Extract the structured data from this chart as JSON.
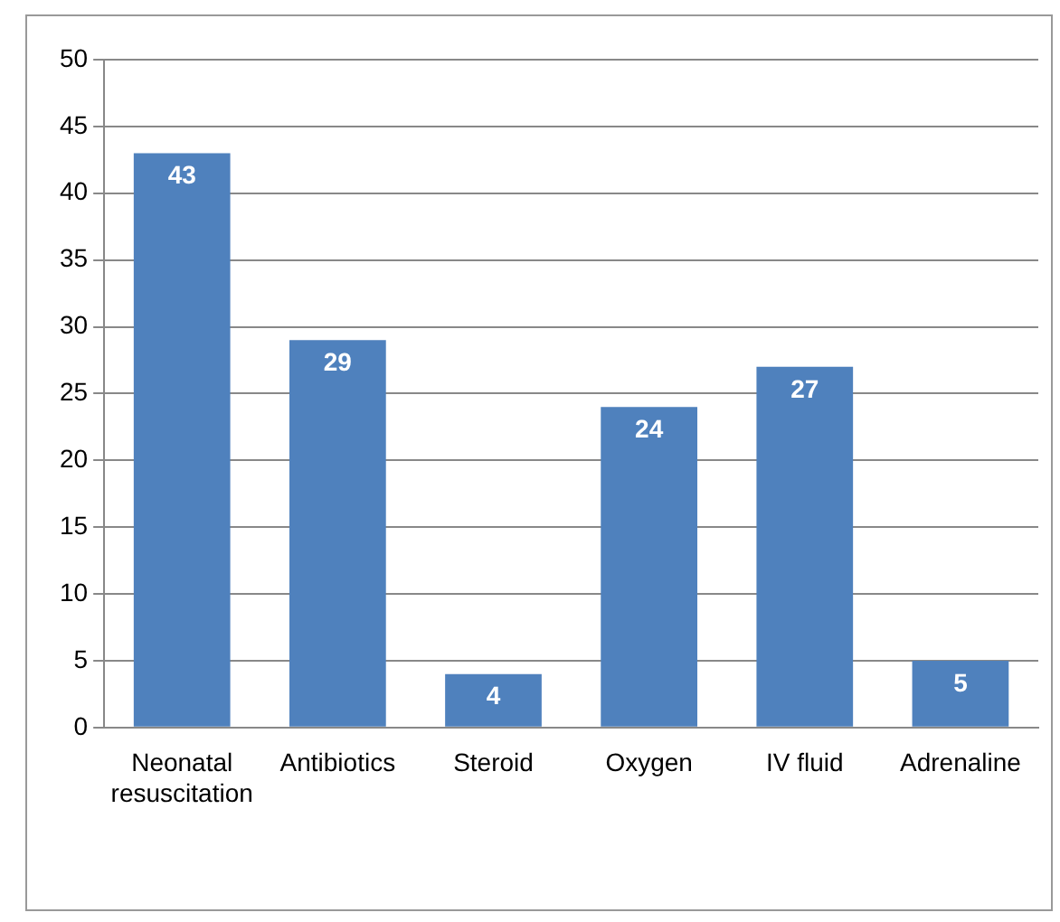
{
  "chart_data": {
    "type": "bar",
    "categories": [
      "Neonatal resuscitation",
      "Antibiotics",
      "Steroid",
      "Oxygen",
      "IV fluid",
      "Adrenaline"
    ],
    "values": [
      43,
      29,
      4,
      24,
      27,
      5
    ],
    "color": "#4f81bd",
    "ylim": [
      0,
      50
    ],
    "yticks": [
      0,
      5,
      10,
      15,
      20,
      25,
      30,
      35,
      40,
      45,
      50
    ],
    "grid": "y",
    "data_labels": true
  }
}
